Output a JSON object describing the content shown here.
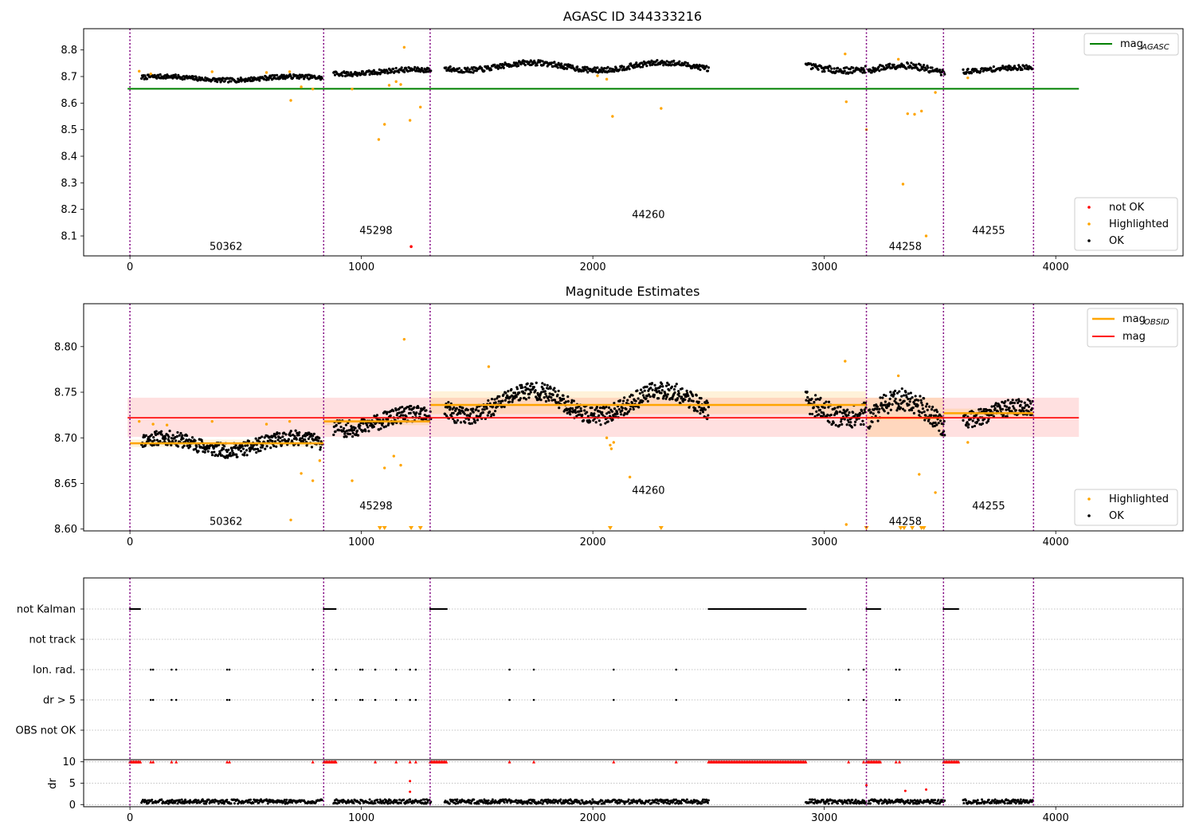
{
  "chart_data": [
    {
      "type": "scatter",
      "title": "AGASC ID 344333216",
      "xlabel": "",
      "ylabel": "",
      "xlim": [
        -200,
        4550
      ],
      "ylim": [
        8.025,
        8.88
      ],
      "xticks": [
        0,
        1000,
        2000,
        3000,
        4000
      ],
      "yticks": [
        8.1,
        8.2,
        8.3,
        8.4,
        8.5,
        8.6,
        8.7,
        8.8
      ],
      "grid": false,
      "obs_boundaries": [
        0,
        837,
        1297,
        3182,
        3515,
        3904
      ],
      "obs_labels": [
        {
          "text": "50362",
          "x": 415,
          "y": 8.06
        },
        {
          "text": "45298",
          "x": 1063,
          "y": 8.12
        },
        {
          "text": "44260",
          "x": 2240,
          "y": 8.18
        },
        {
          "text": "44258",
          "x": 3350,
          "y": 8.06
        },
        {
          "text": "44255",
          "x": 3710,
          "y": 8.12
        }
      ],
      "lines": [
        {
          "name": "mag",
          "sub": "AGASC",
          "color": "#008000",
          "x": [
            -10,
            4100
          ],
          "y": 8.654
        }
      ],
      "series_colors": {
        "OK": "#000000",
        "Highlighted": "#ffa500",
        "not OK": "#ff0000"
      },
      "ok_segments": [
        {
          "x": [
            50,
            830
          ],
          "mean": 8.693,
          "amp": 0.007,
          "noise": 0.008
        },
        {
          "x": [
            880,
            1300
          ],
          "mean": 8.718,
          "amp": 0.008,
          "noise": 0.009
        },
        {
          "x": [
            1360,
            2500
          ],
          "mean": 8.738,
          "amp": 0.014,
          "noise": 0.01
        },
        {
          "x": [
            2920,
            3180
          ],
          "mean": 8.735,
          "amp": 0.012,
          "noise": 0.012
        },
        {
          "x": [
            3190,
            3520
          ],
          "mean": 8.722,
          "amp": 0.02,
          "noise": 0.012
        },
        {
          "x": [
            3600,
            3900
          ],
          "mean": 8.726,
          "amp": 0.008,
          "noise": 0.009
        }
      ],
      "highlighted": [
        [
          40,
          8.72
        ],
        [
          90,
          8.71
        ],
        [
          355,
          8.718
        ],
        [
          590,
          8.715
        ],
        [
          690,
          8.718
        ],
        [
          695,
          8.61
        ],
        [
          740,
          8.661
        ],
        [
          790,
          8.653
        ],
        [
          960,
          8.653
        ],
        [
          1075,
          8.463
        ],
        [
          1100,
          8.52
        ],
        [
          1120,
          8.667
        ],
        [
          1150,
          8.681
        ],
        [
          1170,
          8.67
        ],
        [
          1185,
          8.81
        ],
        [
          1210,
          8.535
        ],
        [
          1255,
          8.585
        ],
        [
          2020,
          8.703
        ],
        [
          2060,
          8.69
        ],
        [
          2085,
          8.55
        ],
        [
          2295,
          8.58
        ],
        [
          3090,
          8.785
        ],
        [
          3095,
          8.605
        ],
        [
          3182,
          8.5
        ],
        [
          3320,
          8.765
        ],
        [
          3340,
          8.295
        ],
        [
          3360,
          8.56
        ],
        [
          3390,
          8.558
        ],
        [
          3420,
          8.57
        ],
        [
          3440,
          8.1
        ],
        [
          3480,
          8.64
        ],
        [
          3620,
          8.695
        ]
      ],
      "not_ok": [
        [
          1215,
          8.06
        ]
      ],
      "legends": [
        {
          "entries": [
            {
              "label": "mag",
              "sub": "AGASC",
              "marker": "line",
              "color": "#008000"
            }
          ]
        },
        {
          "entries": [
            {
              "label": "not OK",
              "marker": "dot",
              "color": "#ff0000"
            },
            {
              "label": "Highlighted",
              "marker": "dot",
              "color": "#ffa500"
            },
            {
              "label": "OK",
              "marker": "dot",
              "color": "#000000"
            }
          ]
        }
      ]
    },
    {
      "type": "scatter",
      "title": "Magnitude Estimates",
      "xlabel": "",
      "ylabel": "",
      "xlim": [
        -200,
        4550
      ],
      "ylim": [
        8.598,
        8.847
      ],
      "xticks": [
        0,
        1000,
        2000,
        3000,
        4000
      ],
      "yticks": [
        8.6,
        8.65,
        8.7,
        8.75,
        8.8
      ],
      "ytick_labels": [
        "8.60",
        "8.65",
        "8.70",
        "8.75",
        "8.80"
      ],
      "grid": false,
      "obs_boundaries": [
        0,
        837,
        1297,
        3182,
        3515,
        3904
      ],
      "obs_labels": [
        {
          "text": "50362",
          "x": 415,
          "y": 8.608
        },
        {
          "text": "45298",
          "x": 1063,
          "y": 8.625
        },
        {
          "text": "44260",
          "x": 2240,
          "y": 8.642
        },
        {
          "text": "44258",
          "x": 3350,
          "y": 8.608
        },
        {
          "text": "44255",
          "x": 3710,
          "y": 8.625
        }
      ],
      "mag": {
        "name": "mag",
        "value": 8.722,
        "band": [
          8.701,
          8.744
        ],
        "x": [
          -10,
          4100
        ],
        "color": "#ff0000"
      },
      "obsid_mag": {
        "name": "mag",
        "sub": "OBSID",
        "color": "#ffa500",
        "segments": [
          {
            "x": [
              0,
              837
            ],
            "value": 8.694,
            "band": [
              8.69,
              8.698
            ]
          },
          {
            "x": [
              837,
              1297
            ],
            "value": 8.718,
            "band": [
              8.714,
              8.722
            ]
          },
          {
            "x": [
              1297,
              3182
            ],
            "value": 8.736,
            "band": [
              8.726,
              8.751
            ]
          },
          {
            "x": [
              3182,
              3515
            ],
            "value": 8.722,
            "band": [
              8.701,
              8.744
            ]
          },
          {
            "x": [
              3515,
              3904
            ],
            "value": 8.727,
            "band": [
              8.722,
              8.732
            ]
          }
        ]
      },
      "highlighted": [
        [
          40,
          8.718
        ],
        [
          100,
          8.715
        ],
        [
          160,
          8.714
        ],
        [
          355,
          8.718
        ],
        [
          590,
          8.715
        ],
        [
          690,
          8.718
        ],
        [
          695,
          8.61
        ],
        [
          740,
          8.661
        ],
        [
          790,
          8.653
        ],
        [
          820,
          8.675
        ],
        [
          960,
          8.653
        ],
        [
          1100,
          8.667
        ],
        [
          1140,
          8.68
        ],
        [
          1170,
          8.67
        ],
        [
          1185,
          8.808
        ],
        [
          1550,
          8.778
        ],
        [
          2060,
          8.7
        ],
        [
          2075,
          8.692
        ],
        [
          2080,
          8.688
        ],
        [
          2090,
          8.695
        ],
        [
          2160,
          8.657
        ],
        [
          3090,
          8.784
        ],
        [
          3095,
          8.605
        ],
        [
          3320,
          8.768
        ],
        [
          3410,
          8.66
        ],
        [
          3480,
          8.64
        ],
        [
          3620,
          8.695
        ]
      ],
      "clipped_low": [
        1080,
        1100,
        1215,
        1255,
        2075,
        2295,
        3182,
        3330,
        3345,
        3380,
        3420,
        3430
      ],
      "legends": [
        {
          "entries": [
            {
              "label": "mag",
              "sub": "OBSID",
              "marker": "line",
              "color": "#ffa500"
            },
            {
              "label": "mag",
              "marker": "line",
              "color": "#ff0000"
            }
          ]
        },
        {
          "entries": [
            {
              "label": "Highlighted",
              "marker": "dot",
              "color": "#ffa500"
            },
            {
              "label": "OK",
              "marker": "dot",
              "color": "#000000"
            }
          ]
        }
      ]
    },
    {
      "type": "scatter",
      "title": "",
      "xlabel": "",
      "ylabel": "",
      "xlim": [
        -200,
        4550
      ],
      "xticks": [
        0,
        1000,
        2000,
        3000,
        4000
      ],
      "obs_boundaries": [
        0,
        837,
        1297,
        3182,
        3515,
        3904
      ],
      "flag_rows": [
        "not Kalman",
        "not track",
        "Ion. rad.",
        "dr > 5",
        "OBS not OK"
      ],
      "flags": {
        "not Kalman": [
          [
            0,
            45
          ],
          [
            837,
            890
          ],
          [
            1297,
            1370
          ],
          [
            2500,
            2920
          ],
          [
            3182,
            3245
          ],
          [
            3515,
            3580
          ]
        ],
        "not track": [],
        "Ion. rad.": [
          90,
          100,
          180,
          200,
          420,
          430,
          790,
          890,
          995,
          1005,
          1060,
          1150,
          1210,
          1235,
          1640,
          1745,
          2090,
          2360,
          3105,
          3170,
          3310,
          3325
        ],
        "dr > 5": [
          90,
          100,
          180,
          200,
          420,
          430,
          790,
          890,
          995,
          1005,
          1060,
          1150,
          1210,
          1235,
          1640,
          1745,
          2090,
          2360,
          3105,
          3170,
          3310,
          3325
        ],
        "OBS not OK": []
      },
      "dr": {
        "ylabel": "dr",
        "ylim": [
          -0.5,
          10.5
        ],
        "yticks": [
          0,
          5,
          10
        ],
        "clip": 10,
        "clipped": [
          [
            0,
            45
          ],
          [
            837,
            890
          ],
          [
            1297,
            1370
          ],
          [
            2500,
            2920
          ],
          [
            3182,
            3245
          ],
          [
            3515,
            3580
          ]
        ],
        "clipped_points": [
          90,
          100,
          180,
          200,
          420,
          430,
          790,
          890,
          1060,
          1150,
          1210,
          1235,
          1640,
          1745,
          2090,
          2360,
          3105,
          3170,
          3310,
          3325
        ],
        "segments": [
          [
            50,
            830
          ],
          [
            880,
            1300
          ],
          [
            1360,
            2500
          ],
          [
            2920,
            3180
          ],
          [
            3190,
            3520
          ],
          [
            3600,
            3900
          ]
        ],
        "level": 0.7,
        "outliers": [
          [
            1210,
            5.5
          ],
          [
            1210,
            3
          ],
          [
            3350,
            3.2
          ],
          [
            3440,
            3.5
          ],
          [
            3182,
            4.5
          ]
        ]
      }
    }
  ]
}
